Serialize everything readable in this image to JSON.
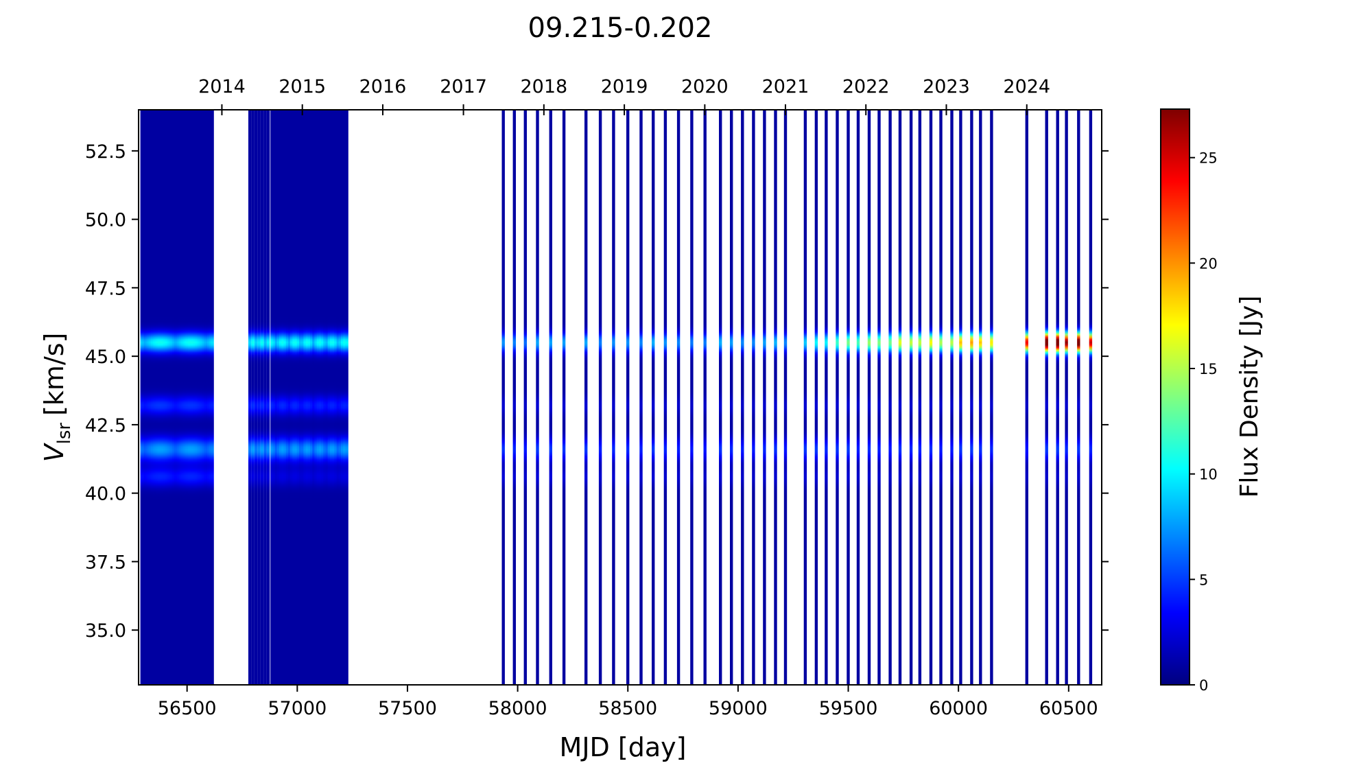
{
  "chart_data": {
    "type": "heatmap",
    "title": "09.215-0.202",
    "xlabel": "MJD [day]",
    "ylabel_main": "V",
    "ylabel_sub": "lsr",
    "ylabel_unit": "[km/s]",
    "colorbar_label": "Flux Density [Jy]",
    "colormap": "jet",
    "colormap_stops": [
      "#00007f",
      "#0000ff",
      "#0080ff",
      "#00ffff",
      "#80ff80",
      "#ffff00",
      "#ff8000",
      "#ff0000",
      "#7f0000"
    ],
    "xlim": [
      56280,
      60650
    ],
    "ylim": [
      33.0,
      54.0
    ],
    "clim": [
      0,
      27.3
    ],
    "x_ticks": [
      56500,
      57000,
      57500,
      58000,
      58500,
      59000,
      59500,
      60000,
      60500
    ],
    "y_ticks": [
      35.0,
      37.5,
      40.0,
      42.5,
      45.0,
      47.5,
      50.0,
      52.5
    ],
    "colorbar_ticks": [
      0,
      5,
      10,
      15,
      20,
      25
    ],
    "top_axis_years": [
      {
        "label": "2014",
        "mjd": 56658
      },
      {
        "label": "2015",
        "mjd": 57023
      },
      {
        "label": "2016",
        "mjd": 57388
      },
      {
        "label": "2017",
        "mjd": 57754
      },
      {
        "label": "2018",
        "mjd": 58119
      },
      {
        "label": "2019",
        "mjd": 58484
      },
      {
        "label": "2020",
        "mjd": 58849
      },
      {
        "label": "2021",
        "mjd": 59215
      },
      {
        "label": "2022",
        "mjd": 59580
      },
      {
        "label": "2023",
        "mjd": 59945
      },
      {
        "label": "2024",
        "mjd": 60310
      }
    ],
    "observations_dense": [
      {
        "start": 56295,
        "end": 56615,
        "step": 8
      },
      {
        "start": 56785,
        "end": 56875,
        "step": 14
      },
      {
        "start": 56885,
        "end": 57225,
        "step": 10
      }
    ],
    "observations_sparse": [
      57935,
      57985,
      58035,
      58090,
      58150,
      58210,
      58310,
      58375,
      58435,
      58500,
      58560,
      58615,
      58670,
      58730,
      58790,
      58850,
      58920,
      58970,
      59020,
      59070,
      59120,
      59170,
      59215,
      59305,
      59355,
      59400,
      59450,
      59500,
      59545,
      59595,
      59640,
      59690,
      59735,
      59785,
      59825,
      59875,
      59920,
      59970,
      60010,
      60060,
      60100,
      60150,
      60310,
      60400,
      60450,
      60490,
      60545,
      60600
    ],
    "spectral_features": [
      {
        "velocity": 45.5,
        "width": 0.25,
        "peak_by_epoch": [
          {
            "mjd": 56300,
            "flux": 8.5
          },
          {
            "mjd": 57220,
            "flux": 8.5
          },
          {
            "mjd": 57935,
            "flux": 6.0
          },
          {
            "mjd": 59300,
            "flux": 7.0
          },
          {
            "mjd": 59640,
            "flux": 14.0
          },
          {
            "mjd": 60150,
            "flux": 17.0
          },
          {
            "mjd": 60310,
            "flux": 27.0
          },
          {
            "mjd": 60600,
            "flux": 25.0
          }
        ]
      },
      {
        "velocity": 41.6,
        "width": 0.3,
        "peak_by_epoch": [
          {
            "mjd": 56300,
            "flux": 6.0
          },
          {
            "mjd": 57220,
            "flux": 6.0
          },
          {
            "mjd": 57935,
            "flux": 3.5
          },
          {
            "mjd": 60600,
            "flux": 3.5
          }
        ]
      },
      {
        "velocity": 43.2,
        "width": 0.25,
        "peak_by_epoch": [
          {
            "mjd": 56300,
            "flux": 3.5
          },
          {
            "mjd": 57220,
            "flux": 3.0
          },
          {
            "mjd": 57935,
            "flux": 1.2
          },
          {
            "mjd": 60600,
            "flux": 1.2
          }
        ]
      },
      {
        "velocity": 40.6,
        "width": 0.25,
        "peak_by_epoch": [
          {
            "mjd": 56300,
            "flux": 3.0
          },
          {
            "mjd": 56620,
            "flux": 3.0
          },
          {
            "mjd": 56780,
            "flux": 1.5
          },
          {
            "mjd": 60600,
            "flux": 1.0
          }
        ]
      }
    ],
    "background_flux": 0.9
  }
}
